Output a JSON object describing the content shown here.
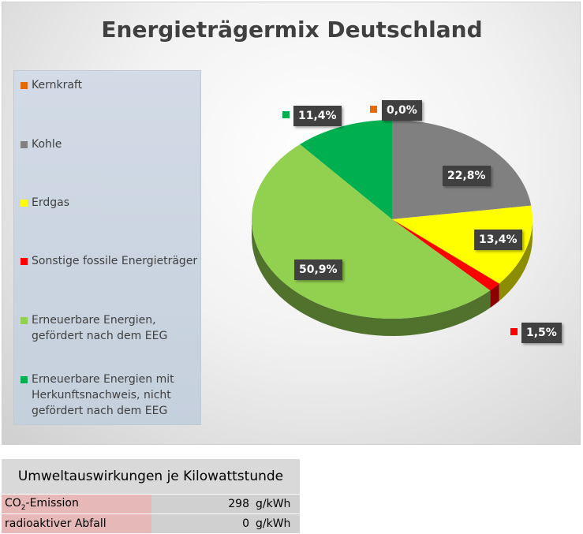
{
  "chart_data": {
    "type": "pie",
    "title": "Energieträgermix Deutschland",
    "categories": [
      "Kernkraft",
      "Kohle",
      "Erdgas",
      "Sonstige fossile Energieträger",
      "Erneuerbare Energien, gefördert nach dem EEG",
      "Erneuerbare Energien mit Herkunftsnachweis, nicht gefördert nach dem EEG"
    ],
    "values": [
      0.0,
      22.8,
      13.4,
      1.5,
      50.9,
      11.4
    ],
    "value_labels": [
      "0,0%",
      "22,8%",
      "13,4%",
      "1,5%",
      "50,9%",
      "11,4%"
    ],
    "colors": [
      "#e36c09",
      "#808080",
      "#ffff00",
      "#ff0000",
      "#92d050",
      "#00b050"
    ],
    "legend_position": "left",
    "style": "3d"
  },
  "environment": {
    "title": "Umweltauswirkungen je Kilowattstunde",
    "rows": [
      {
        "name_main": "CO",
        "name_sub": "2",
        "name_rest": "-Emission",
        "value": "298",
        "unit": "g/kWh"
      },
      {
        "name_main": "radioaktiver Abfall",
        "name_sub": "",
        "name_rest": "",
        "value": "0",
        "unit": "g/kWh"
      }
    ]
  }
}
